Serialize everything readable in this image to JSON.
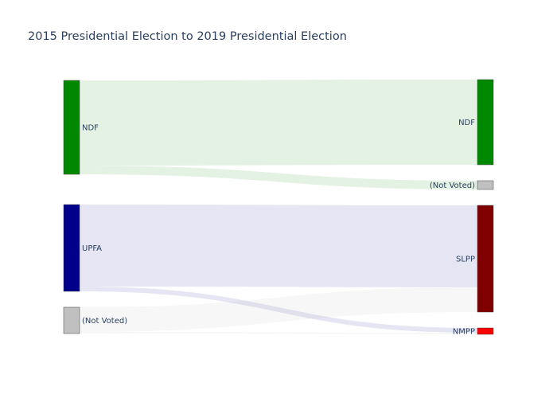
{
  "chart_data": {
    "type": "sankey",
    "title": "2015 Presidential Election to 2019 Presidential Election",
    "nodes": [
      {
        "id": "ndf_2015",
        "label": "NDF",
        "color": "#008800",
        "column": 0
      },
      {
        "id": "upfa_2015",
        "label": "UPFA",
        "color": "#00008b",
        "column": 0
      },
      {
        "id": "notvoted_2015",
        "label": "(Not Voted)",
        "color": "#c0c0c0",
        "column": 0
      },
      {
        "id": "ndf_2019",
        "label": "NDF",
        "color": "#008800",
        "column": 1
      },
      {
        "id": "notvoted_2019",
        "label": "(Not Voted)",
        "color": "#c0c0c0",
        "column": 1
      },
      {
        "id": "slpp_2019",
        "label": "SLPP",
        "color": "#800000",
        "column": 1
      },
      {
        "id": "nmpp_2019",
        "label": "NMPP",
        "color": "#ff0000",
        "column": 1
      }
    ],
    "links": [
      {
        "source": "ndf_2015",
        "target": "ndf_2019",
        "value": 107,
        "color": "rgba(0,136,0,0.11)"
      },
      {
        "source": "ndf_2015",
        "target": "notvoted_2019",
        "value": 11,
        "color": "rgba(0,136,0,0.11)"
      },
      {
        "source": "upfa_2015",
        "target": "slpp_2019",
        "value": 103,
        "color": "rgba(0,0,139,0.10)"
      },
      {
        "source": "upfa_2015",
        "target": "nmpp_2019",
        "value": 6,
        "color": "rgba(0,0,139,0.10)"
      },
      {
        "source": "notvoted_2015",
        "target": "slpp_2019",
        "value": 31,
        "color": "rgba(192,192,192,0.12)"
      },
      {
        "source": "notvoted_2015",
        "target": "nmpp_2019",
        "value": 2,
        "color": "rgba(192,192,192,0.12)"
      }
    ]
  }
}
